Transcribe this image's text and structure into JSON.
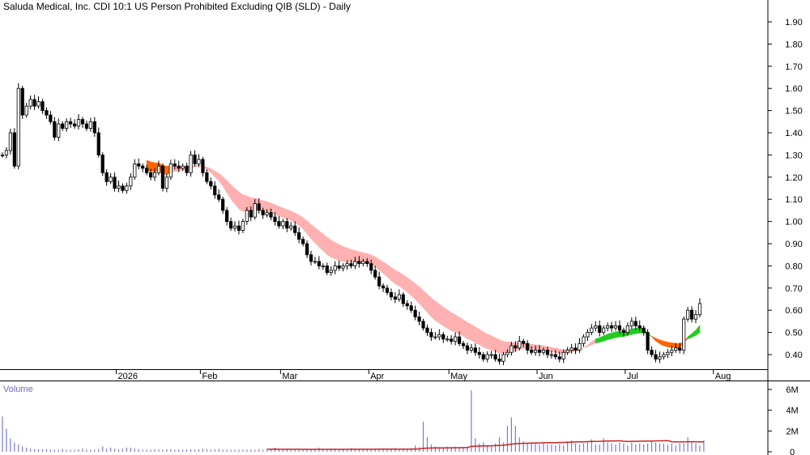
{
  "chart_data": {
    "type": "candlestick",
    "title": "Saluda Medical, Inc. CDI 10:1 US Person Prohibited Excluding QIB (SLD) - Daily",
    "price_axis": {
      "ylim": [
        0.32,
        2.0
      ],
      "ticks": [
        "1.90",
        "1.80",
        "1.70",
        "1.60",
        "1.50",
        "1.40",
        "1.30",
        "1.20",
        "1.10",
        "1.00",
        "0.90",
        "0.80",
        "0.70",
        "0.60",
        "0.50",
        "0.40"
      ]
    },
    "volume_axis": {
      "label": "Volume",
      "ylim": [
        0,
        6500000
      ],
      "ticks": [
        {
          "label": "6M",
          "value": 6000000
        },
        {
          "label": "4M",
          "value": 4000000
        },
        {
          "label": "2M",
          "value": 2000000
        },
        {
          "label": "0",
          "value": 0
        }
      ]
    },
    "x_labels": [
      {
        "label": "2026",
        "day": 29
      },
      {
        "label": "Feb",
        "day": 50
      },
      {
        "label": "Mar",
        "day": 70
      },
      {
        "label": "Apr",
        "day": 92
      },
      {
        "label": "May",
        "day": 112
      },
      {
        "label": "Jun",
        "day": 134
      },
      {
        "label": "Jul",
        "day": 156
      },
      {
        "label": "Aug",
        "day": 178
      }
    ],
    "close": [
      1.3,
      1.32,
      1.4,
      1.25,
      1.6,
      1.48,
      1.52,
      1.55,
      1.52,
      1.54,
      1.5,
      1.48,
      1.45,
      1.38,
      1.44,
      1.42,
      1.45,
      1.44,
      1.43,
      1.46,
      1.44,
      1.42,
      1.45,
      1.4,
      1.3,
      1.22,
      1.18,
      1.2,
      1.15,
      1.16,
      1.14,
      1.16,
      1.2,
      1.26,
      1.25,
      1.24,
      1.22,
      1.2,
      1.22,
      1.25,
      1.15,
      1.2,
      1.26,
      1.25,
      1.24,
      1.25,
      1.22,
      1.3,
      1.26,
      1.28,
      1.22,
      1.18,
      1.16,
      1.12,
      1.1,
      1.05,
      1.0,
      0.97,
      0.98,
      0.96,
      1.0,
      1.05,
      1.02,
      1.08,
      1.05,
      1.03,
      1.04,
      1.02,
      1.0,
      0.98,
      1.0,
      0.97,
      0.98,
      0.95,
      0.92,
      0.9,
      0.85,
      0.82,
      0.82,
      0.8,
      0.8,
      0.77,
      0.78,
      0.8,
      0.79,
      0.8,
      0.81,
      0.8,
      0.82,
      0.81,
      0.82,
      0.81,
      0.78,
      0.75,
      0.71,
      0.7,
      0.68,
      0.66,
      0.65,
      0.67,
      0.63,
      0.62,
      0.6,
      0.57,
      0.55,
      0.52,
      0.5,
      0.48,
      0.48,
      0.49,
      0.47,
      0.47,
      0.46,
      0.48,
      0.45,
      0.44,
      0.42,
      0.43,
      0.41,
      0.4,
      0.38,
      0.4,
      0.4,
      0.38,
      0.37,
      0.4,
      0.41,
      0.44,
      0.43,
      0.46,
      0.45,
      0.42,
      0.41,
      0.42,
      0.41,
      0.42,
      0.4,
      0.4,
      0.39,
      0.38,
      0.41,
      0.42,
      0.43,
      0.42,
      0.45,
      0.48,
      0.5,
      0.52,
      0.53,
      0.5,
      0.52,
      0.53,
      0.52,
      0.53,
      0.51,
      0.5,
      0.53,
      0.55,
      0.53,
      0.52,
      0.5,
      0.42,
      0.4,
      0.38,
      0.39,
      0.4,
      0.41,
      0.42,
      0.43,
      0.42,
      0.56,
      0.6,
      0.56,
      0.58,
      0.63
    ],
    "volume_bars": [
      3400000,
      2200000,
      1300000,
      900000,
      700000,
      500000,
      400000,
      300000,
      250000,
      250000,
      250000,
      250000,
      200000,
      200000,
      200000,
      300000,
      200000,
      200000,
      200000,
      250000,
      300000,
      200000,
      200000,
      200000,
      250000,
      500000,
      300000,
      400000,
      300000,
      200000,
      300000,
      400000,
      400000,
      300000,
      250000,
      200000,
      200000,
      200000,
      250000,
      200000,
      200000,
      250000,
      250000,
      200000,
      200000,
      200000,
      200000,
      250000,
      200000,
      250000,
      300000,
      250000,
      200000,
      250000,
      250000,
      200000,
      200000,
      200000,
      200000,
      200000,
      200000,
      200000,
      200000,
      200000,
      250000,
      200000,
      200000,
      200000,
      400000,
      200000,
      200000,
      200000,
      200000,
      200000,
      200000,
      250000,
      300000,
      250000,
      200000,
      400000,
      300000,
      250000,
      300000,
      300000,
      250000,
      300000,
      300000,
      350000,
      300000,
      250000,
      300000,
      250000,
      300000,
      300000,
      250000,
      300000,
      300000,
      300000,
      350000,
      300000,
      300000,
      300000,
      350000,
      600000,
      450000,
      2900000,
      1400000,
      700000,
      500000,
      450000,
      400000,
      500000,
      450000,
      500000,
      400000,
      450000,
      400000,
      5900000,
      1300000,
      800000,
      900000,
      650000,
      600000,
      800000,
      1400000,
      900000,
      2500000,
      3300000,
      2500000,
      1400000,
      1000000,
      800000,
      900000,
      800000,
      700000,
      800000,
      700000,
      700000,
      600000,
      750000,
      600000,
      1000000,
      1100000,
      800000,
      700000,
      800000,
      900000,
      1200000,
      700000,
      700000,
      1300000,
      900000,
      800000,
      700000,
      900000,
      800000,
      600000,
      900000,
      700000,
      800000,
      700000,
      800000,
      1000000,
      900000,
      800000,
      800000,
      700000,
      800000,
      600000,
      800000,
      800000,
      1400000,
      900000,
      800000,
      600000,
      1100000
    ]
  }
}
